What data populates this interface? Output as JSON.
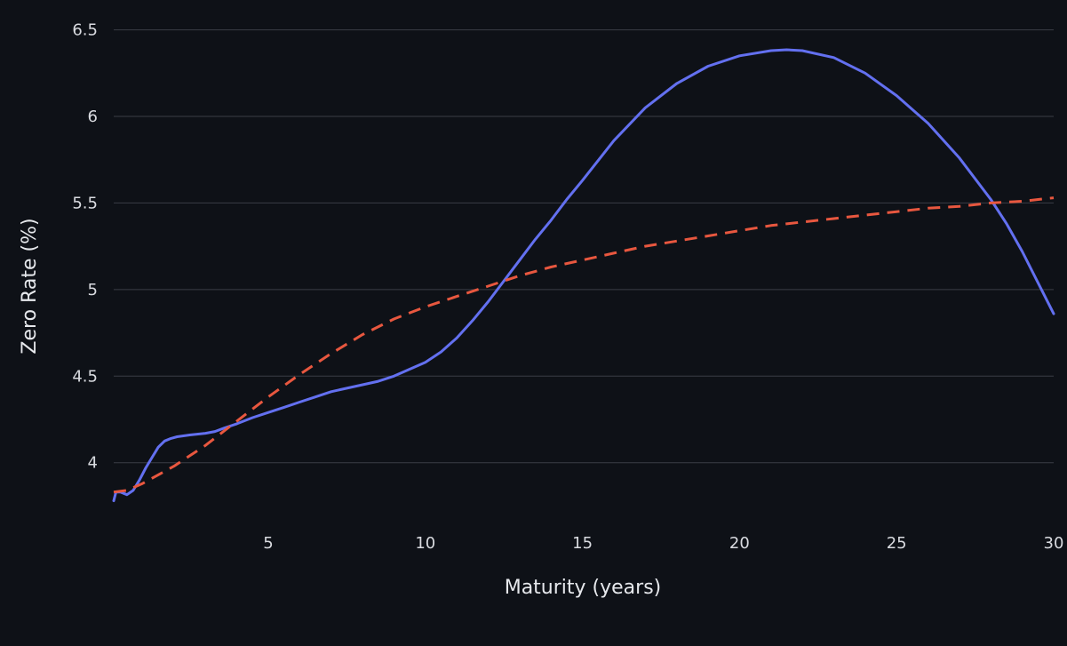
{
  "chart_data": {
    "type": "line",
    "title": "",
    "xlabel": "Maturity (years)",
    "ylabel": "Zero Rate (%)",
    "xlim": [
      0.08,
      30
    ],
    "ylim": [
      3.67,
      6.58
    ],
    "x_ticks": [
      5,
      10,
      15,
      20,
      25,
      30
    ],
    "y_ticks": [
      4,
      4.5,
      5,
      5.5,
      6,
      6.5
    ],
    "x_tick_labels": [
      "5",
      "10",
      "15",
      "20",
      "25",
      "30"
    ],
    "y_tick_labels": [
      "4",
      "4.5",
      "5",
      "5.5",
      "6",
      "6.5"
    ],
    "grid": "horizontal",
    "legend": "none",
    "series": [
      {
        "color": "#6370f0",
        "style": "solid",
        "x": [
          0.08,
          0.15,
          0.3,
          0.5,
          0.7,
          0.9,
          1.1,
          1.3,
          1.5,
          1.7,
          1.9,
          2.1,
          2.5,
          3.0,
          3.3,
          3.6,
          4.0,
          4.5,
          5.0,
          5.5,
          6.0,
          6.5,
          7.0,
          7.5,
          8.0,
          8.5,
          9.0,
          9.5,
          10.0,
          10.5,
          11.0,
          11.5,
          12.0,
          12.5,
          13.0,
          13.5,
          14.0,
          14.5,
          15.0,
          16.0,
          17.0,
          18.0,
          19.0,
          20.0,
          21.0,
          21.5,
          22.0,
          23.0,
          24.0,
          25.0,
          26.0,
          27.0,
          28.0,
          28.5,
          29.0,
          29.5,
          30.0
        ],
        "y": [
          3.78,
          3.83,
          3.83,
          3.815,
          3.84,
          3.9,
          3.97,
          4.03,
          4.09,
          4.125,
          4.14,
          4.15,
          4.16,
          4.17,
          4.18,
          4.2,
          4.225,
          4.26,
          4.29,
          4.32,
          4.35,
          4.38,
          4.41,
          4.43,
          4.45,
          4.47,
          4.5,
          4.54,
          4.58,
          4.64,
          4.72,
          4.82,
          4.93,
          5.05,
          5.17,
          5.29,
          5.4,
          5.52,
          5.63,
          5.86,
          6.05,
          6.19,
          6.29,
          6.35,
          6.38,
          6.385,
          6.38,
          6.34,
          6.25,
          6.12,
          5.96,
          5.76,
          5.52,
          5.38,
          5.22,
          5.04,
          4.86
        ]
      },
      {
        "color": "#e8573f",
        "style": "dashed",
        "x": [
          0.08,
          0.5,
          1,
          2,
          3,
          4,
          5,
          6,
          7,
          8,
          9,
          10,
          11,
          12,
          13,
          14,
          15,
          16,
          17,
          18,
          19,
          20,
          21,
          22,
          23,
          24,
          25,
          26,
          27,
          28,
          29,
          30
        ],
        "y": [
          3.83,
          3.84,
          3.88,
          3.98,
          4.1,
          4.24,
          4.38,
          4.51,
          4.63,
          4.74,
          4.83,
          4.9,
          4.96,
          5.02,
          5.08,
          5.13,
          5.17,
          5.21,
          5.25,
          5.28,
          5.31,
          5.34,
          5.37,
          5.39,
          5.41,
          5.43,
          5.45,
          5.47,
          5.48,
          5.5,
          5.51,
          5.53
        ]
      }
    ]
  }
}
